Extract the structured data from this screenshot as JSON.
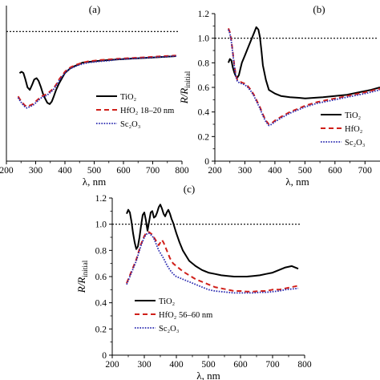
{
  "colors": {
    "tio2": "#000000",
    "hfo2": "#d0201a",
    "sc2o3": "#2a2ab0",
    "reference": "#000000"
  },
  "chart_data": [
    {
      "type": "line",
      "panel": "(a)",
      "xlabel": "λ, nm",
      "ylabel": "",
      "xlim": [
        200,
        800
      ],
      "ylim": [
        0,
        1.2
      ],
      "x_ticks": [
        200,
        300,
        400,
        500,
        600,
        700,
        800
      ],
      "x_tick_labels": [
        "200",
        "300",
        "400",
        "500",
        "600",
        "700",
        "800"
      ],
      "y_ticks": [],
      "y_tick_labels": [],
      "reference_line": 1.0,
      "legend": {
        "placement": "center-right",
        "label": "HfO₂ 18–20 nm"
      },
      "series": [
        {
          "name": "TiO₂",
          "style": "solid",
          "x": [
            245,
            252,
            258,
            265,
            272,
            280,
            288,
            295,
            303,
            310,
            318,
            325,
            333,
            340,
            348,
            355,
            362,
            370,
            380,
            390,
            400,
            420,
            440,
            460,
            480,
            500,
            520,
            550,
            580,
            620,
            660,
            700,
            740,
            780
          ],
          "y": [
            0.68,
            0.69,
            0.68,
            0.63,
            0.57,
            0.55,
            0.59,
            0.63,
            0.64,
            0.62,
            0.57,
            0.52,
            0.48,
            0.45,
            0.44,
            0.46,
            0.5,
            0.55,
            0.6,
            0.64,
            0.68,
            0.72,
            0.74,
            0.76,
            0.765,
            0.77,
            0.775,
            0.78,
            0.785,
            0.79,
            0.795,
            0.8,
            0.805,
            0.81
          ]
        },
        {
          "name": "HfO₂",
          "style": "dashed",
          "x": [
            240,
            248,
            255,
            263,
            270,
            280,
            290,
            300,
            310,
            320,
            330,
            340,
            350,
            360,
            370,
            380,
            390,
            400,
            410,
            420,
            440,
            460,
            480,
            500,
            520,
            550,
            580,
            620,
            660,
            700,
            740,
            780
          ],
          "y": [
            0.5,
            0.47,
            0.45,
            0.43,
            0.42,
            0.43,
            0.44,
            0.46,
            0.48,
            0.5,
            0.51,
            0.52,
            0.54,
            0.56,
            0.59,
            0.63,
            0.66,
            0.69,
            0.71,
            0.725,
            0.745,
            0.76,
            0.77,
            0.775,
            0.78,
            0.785,
            0.79,
            0.795,
            0.8,
            0.805,
            0.81,
            0.815
          ]
        },
        {
          "name": "Sc₂O₃",
          "style": "dotted",
          "x": [
            240,
            248,
            255,
            263,
            270,
            280,
            290,
            300,
            310,
            320,
            330,
            340,
            350,
            360,
            370,
            380,
            390,
            400,
            410,
            420,
            440,
            460,
            480,
            500,
            520,
            550,
            580,
            620,
            660,
            700,
            740,
            780
          ],
          "y": [
            0.49,
            0.46,
            0.44,
            0.42,
            0.41,
            0.42,
            0.43,
            0.45,
            0.47,
            0.49,
            0.5,
            0.51,
            0.53,
            0.55,
            0.58,
            0.62,
            0.65,
            0.68,
            0.7,
            0.715,
            0.735,
            0.75,
            0.76,
            0.765,
            0.77,
            0.775,
            0.785,
            0.79,
            0.795,
            0.8,
            0.805,
            0.81
          ]
        }
      ]
    },
    {
      "type": "line",
      "panel": "(b)",
      "xlabel": "λ, nm",
      "ylabel": "R/Rinitial",
      "xlim": [
        200,
        750
      ],
      "ylim": [
        0,
        1.2
      ],
      "x_ticks": [
        200,
        300,
        400,
        500,
        600,
        700
      ],
      "x_tick_labels": [
        "200",
        "300",
        "400",
        "500",
        "600",
        "700"
      ],
      "y_ticks": [
        0,
        0.2,
        0.4,
        0.6,
        0.8,
        1.0,
        1.2
      ],
      "y_tick_labels": [
        "0",
        "0.2",
        "0.4",
        "0.6",
        "0.8",
        "1.0",
        "1.2"
      ],
      "reference_line": 1.0,
      "legend": {
        "placement": "bottom-right",
        "label": "HfO₂"
      },
      "series": [
        {
          "name": "TiO₂",
          "style": "solid",
          "x": [
            245,
            250,
            255,
            260,
            265,
            270,
            275,
            280,
            285,
            290,
            300,
            310,
            320,
            330,
            338,
            345,
            350,
            355,
            360,
            370,
            380,
            400,
            420,
            450,
            480,
            500,
            530,
            560,
            600,
            640,
            680,
            720,
            750
          ],
          "y": [
            0.8,
            0.83,
            0.82,
            0.76,
            0.72,
            0.69,
            0.68,
            0.7,
            0.75,
            0.8,
            0.86,
            0.92,
            0.98,
            1.04,
            1.09,
            1.07,
            1.01,
            0.9,
            0.78,
            0.66,
            0.58,
            0.55,
            0.53,
            0.52,
            0.515,
            0.51,
            0.515,
            0.52,
            0.53,
            0.54,
            0.56,
            0.58,
            0.6
          ]
        },
        {
          "name": "HfO₂",
          "style": "dashed",
          "x": [
            245,
            250,
            255,
            260,
            265,
            270,
            275,
            280,
            290,
            300,
            310,
            320,
            330,
            340,
            350,
            360,
            370,
            380,
            390,
            400,
            420,
            450,
            480,
            500,
            540,
            580,
            620,
            660,
            700,
            750
          ],
          "y": [
            1.08,
            1.05,
            0.98,
            0.88,
            0.78,
            0.7,
            0.66,
            0.65,
            0.64,
            0.63,
            0.61,
            0.58,
            0.54,
            0.49,
            0.44,
            0.38,
            0.33,
            0.3,
            0.31,
            0.33,
            0.36,
            0.4,
            0.43,
            0.45,
            0.48,
            0.5,
            0.52,
            0.54,
            0.56,
            0.59
          ]
        },
        {
          "name": "Sc₂O₃",
          "style": "dotted",
          "x": [
            245,
            250,
            255,
            260,
            265,
            270,
            275,
            280,
            290,
            300,
            310,
            320,
            330,
            340,
            350,
            360,
            370,
            380,
            390,
            400,
            420,
            450,
            480,
            500,
            540,
            580,
            620,
            660,
            700,
            750
          ],
          "y": [
            1.07,
            1.04,
            0.97,
            0.87,
            0.77,
            0.69,
            0.65,
            0.64,
            0.63,
            0.62,
            0.6,
            0.57,
            0.53,
            0.48,
            0.43,
            0.37,
            0.32,
            0.29,
            0.3,
            0.32,
            0.35,
            0.39,
            0.42,
            0.44,
            0.47,
            0.49,
            0.51,
            0.53,
            0.55,
            0.58
          ]
        }
      ]
    },
    {
      "type": "line",
      "panel": "(c)",
      "xlabel": "λ, nm",
      "ylabel": "R/Rinitial",
      "xlim": [
        200,
        800
      ],
      "ylim": [
        0,
        1.2
      ],
      "x_ticks": [
        200,
        300,
        400,
        500,
        600,
        700,
        800
      ],
      "x_tick_labels": [
        "200",
        "300",
        "400",
        "500",
        "600",
        "700",
        "800"
      ],
      "y_ticks": [
        0,
        0.2,
        0.4,
        0.6,
        0.8,
        1.0,
        1.2
      ],
      "y_tick_labels": [
        "0",
        "0.2",
        "0.4",
        "0.6",
        "0.8",
        "1.0",
        "1.2"
      ],
      "reference_line": 1.0,
      "legend": {
        "placement": "bottom-left",
        "label": "HfO₂ 56–60 nm"
      },
      "series": [
        {
          "name": "TiO₂",
          "style": "solid",
          "x": [
            245,
            250,
            255,
            260,
            265,
            270,
            275,
            280,
            285,
            290,
            295,
            300,
            305,
            310,
            315,
            320,
            325,
            330,
            335,
            340,
            345,
            350,
            355,
            360,
            365,
            370,
            375,
            380,
            385,
            390,
            395,
            400,
            410,
            420,
            430,
            440,
            460,
            480,
            500,
            520,
            540,
            560,
            580,
            600,
            620,
            640,
            660,
            680,
            700,
            720,
            740,
            760,
            780
          ],
          "y": [
            1.08,
            1.11,
            1.09,
            1.02,
            0.93,
            0.86,
            0.81,
            0.83,
            0.9,
            0.99,
            1.07,
            1.09,
            1.03,
            0.95,
            1.02,
            1.09,
            1.1,
            1.05,
            1.06,
            1.09,
            1.13,
            1.15,
            1.12,
            1.08,
            1.06,
            1.09,
            1.11,
            1.08,
            1.04,
            1.01,
            0.97,
            0.93,
            0.86,
            0.8,
            0.76,
            0.72,
            0.68,
            0.65,
            0.63,
            0.62,
            0.61,
            0.605,
            0.6,
            0.6,
            0.6,
            0.605,
            0.61,
            0.62,
            0.63,
            0.65,
            0.67,
            0.68,
            0.66
          ]
        },
        {
          "name": "HfO₂",
          "style": "dashed",
          "x": [
            245,
            250,
            255,
            260,
            265,
            270,
            275,
            280,
            285,
            290,
            295,
            300,
            305,
            310,
            315,
            320,
            325,
            330,
            335,
            340,
            345,
            350,
            355,
            360,
            370,
            380,
            390,
            400,
            410,
            420,
            440,
            460,
            480,
            500,
            520,
            540,
            560,
            580,
            600,
            620,
            640,
            660,
            680,
            700,
            720,
            740,
            760,
            780
          ],
          "y": [
            0.55,
            0.58,
            0.61,
            0.64,
            0.67,
            0.7,
            0.73,
            0.77,
            0.81,
            0.85,
            0.88,
            0.91,
            0.93,
            0.94,
            0.94,
            0.93,
            0.92,
            0.9,
            0.88,
            0.86,
            0.84,
            0.86,
            0.88,
            0.86,
            0.8,
            0.74,
            0.7,
            0.68,
            0.66,
            0.64,
            0.61,
            0.58,
            0.56,
            0.54,
            0.52,
            0.51,
            0.5,
            0.49,
            0.49,
            0.485,
            0.485,
            0.49,
            0.49,
            0.5,
            0.5,
            0.51,
            0.52,
            0.53
          ]
        },
        {
          "name": "Sc₂O₃",
          "style": "dotted",
          "x": [
            245,
            250,
            255,
            260,
            265,
            270,
            275,
            280,
            285,
            290,
            295,
            300,
            305,
            310,
            315,
            320,
            325,
            330,
            335,
            340,
            345,
            350,
            355,
            360,
            370,
            380,
            390,
            400,
            410,
            420,
            440,
            460,
            480,
            500,
            520,
            540,
            560,
            580,
            600,
            620,
            640,
            660,
            680,
            700,
            720,
            740,
            760,
            780
          ],
          "y": [
            0.54,
            0.57,
            0.6,
            0.63,
            0.66,
            0.69,
            0.72,
            0.76,
            0.8,
            0.84,
            0.87,
            0.9,
            0.92,
            0.93,
            0.93,
            0.92,
            0.91,
            0.89,
            0.86,
            0.83,
            0.8,
            0.78,
            0.76,
            0.74,
            0.69,
            0.65,
            0.62,
            0.6,
            0.59,
            0.58,
            0.56,
            0.54,
            0.52,
            0.5,
            0.49,
            0.485,
            0.48,
            0.475,
            0.475,
            0.475,
            0.475,
            0.48,
            0.48,
            0.485,
            0.49,
            0.5,
            0.505,
            0.51
          ]
        }
      ]
    }
  ]
}
